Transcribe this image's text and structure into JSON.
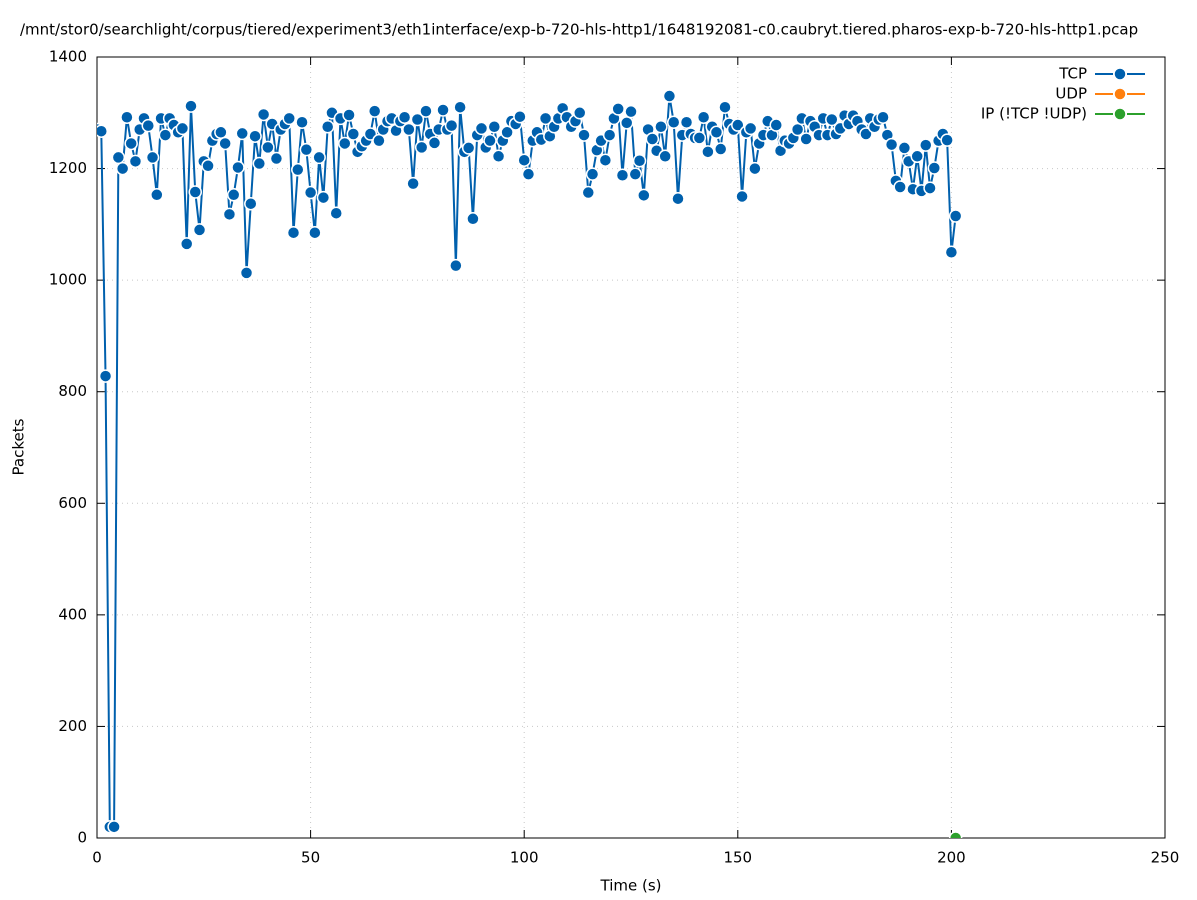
{
  "chart_data": {
    "type": "line",
    "title": "/mnt/stor0/searchlight/corpus/tiered/experiment3/eth1interface/exp-b-720-hls-http1/1648192081-c0.caubryt.tiered.pharos-exp-b-720-hls-http1.pcap",
    "xlabel": "Time (s)",
    "ylabel": "Packets",
    "xlim": [
      0,
      250
    ],
    "xticks": [
      0,
      50,
      100,
      150,
      200,
      250
    ],
    "ylim": [
      0,
      1400
    ],
    "yticks": [
      0,
      200,
      400,
      600,
      800,
      1000,
      1200,
      1400
    ],
    "grid": true,
    "legend": "top-right",
    "series": [
      {
        "name": "TCP",
        "color": "#0060ad",
        "x": [
          0,
          1,
          2,
          3,
          4,
          5,
          6,
          7,
          8,
          9,
          10,
          11,
          12,
          13,
          14,
          15,
          16,
          17,
          18,
          19,
          20,
          21,
          22,
          23,
          24,
          25,
          26,
          27,
          28,
          29,
          30,
          31,
          32,
          33,
          34,
          35,
          36,
          37,
          38,
          39,
          40,
          41,
          42,
          43,
          44,
          45,
          46,
          47,
          48,
          49,
          50,
          51,
          52,
          53,
          54,
          55,
          56,
          57,
          58,
          59,
          60,
          61,
          62,
          63,
          64,
          65,
          66,
          67,
          68,
          69,
          70,
          71,
          72,
          73,
          74,
          75,
          76,
          77,
          78,
          79,
          80,
          81,
          82,
          83,
          84,
          85,
          86,
          87,
          88,
          89,
          90,
          91,
          92,
          93,
          94,
          95,
          96,
          97,
          98,
          99,
          100,
          101,
          102,
          103,
          104,
          105,
          106,
          107,
          108,
          109,
          110,
          111,
          112,
          113,
          114,
          115,
          116,
          117,
          118,
          119,
          120,
          121,
          122,
          123,
          124,
          125,
          126,
          127,
          128,
          129,
          130,
          131,
          132,
          133,
          134,
          135,
          136,
          137,
          138,
          139,
          140,
          141,
          142,
          143,
          144,
          145,
          146,
          147,
          148,
          149,
          150,
          151,
          152,
          153,
          154,
          155,
          156,
          157,
          158,
          159,
          160,
          161,
          162,
          163,
          164,
          165,
          166,
          167,
          168,
          169,
          170,
          171,
          172,
          173,
          174,
          175,
          176,
          177,
          178,
          179,
          180,
          181,
          182,
          183,
          184,
          185,
          186,
          187,
          188,
          189,
          190,
          191,
          192,
          193,
          194,
          195,
          196,
          197,
          198,
          199,
          200,
          201
        ],
        "values": [
          1270,
          1267,
          828,
          20,
          20,
          1220,
          1200,
          1292,
          1245,
          1213,
          1270,
          1290,
          1277,
          1220,
          1153,
          1290,
          1260,
          1290,
          1278,
          1265,
          1272,
          1065,
          1312,
          1158,
          1090,
          1213,
          1205,
          1250,
          1262,
          1265,
          1245,
          1118,
          1153,
          1202,
          1263,
          1013,
          1137,
          1258,
          1209,
          1297,
          1238,
          1280,
          1218,
          1270,
          1280,
          1290,
          1085,
          1198,
          1283,
          1234,
          1157,
          1085,
          1220,
          1148,
          1275,
          1300,
          1120,
          1290,
          1245,
          1296,
          1262,
          1230,
          1240,
          1250,
          1262,
          1303,
          1250,
          1270,
          1285,
          1290,
          1268,
          1285,
          1292,
          1270,
          1173,
          1288,
          1238,
          1303,
          1262,
          1246,
          1270,
          1305,
          1270,
          1277,
          1026,
          1310,
          1230,
          1237,
          1110,
          1260,
          1272,
          1238,
          1250,
          1275,
          1222,
          1250,
          1265,
          1285,
          1280,
          1293,
          1215,
          1190,
          1250,
          1265,
          1252,
          1290,
          1258,
          1275,
          1290,
          1308,
          1292,
          1275,
          1285,
          1300,
          1260,
          1157,
          1190,
          1233,
          1250,
          1215,
          1260,
          1290,
          1307,
          1188,
          1282,
          1302,
          1190,
          1214,
          1152,
          1270,
          1253,
          1232,
          1275,
          1222,
          1330,
          1283,
          1146,
          1260,
          1283,
          1262,
          1255,
          1255,
          1292,
          1230,
          1275,
          1265,
          1235,
          1310,
          1280,
          1270,
          1278,
          1150,
          1265,
          1272,
          1200,
          1245,
          1260,
          1285,
          1260,
          1278,
          1232,
          1250,
          1245,
          1255,
          1270,
          1290,
          1253,
          1285,
          1275,
          1260,
          1290,
          1260,
          1288,
          1262,
          1272,
          1295,
          1280,
          1295,
          1285,
          1270,
          1262,
          1290,
          1275,
          1288,
          1292,
          1260,
          1243,
          1178,
          1167,
          1237,
          1213,
          1163,
          1222,
          1160,
          1242,
          1165,
          1201,
          1250,
          1262,
          1251,
          1050,
          1115
        ]
      },
      {
        "name": "UDP",
        "color": "#ff7f0e",
        "x": [],
        "values": []
      },
      {
        "name": "IP (!TCP  !UDP)",
        "color": "#2ca02c",
        "x": [
          201
        ],
        "values": [
          0
        ]
      }
    ]
  }
}
